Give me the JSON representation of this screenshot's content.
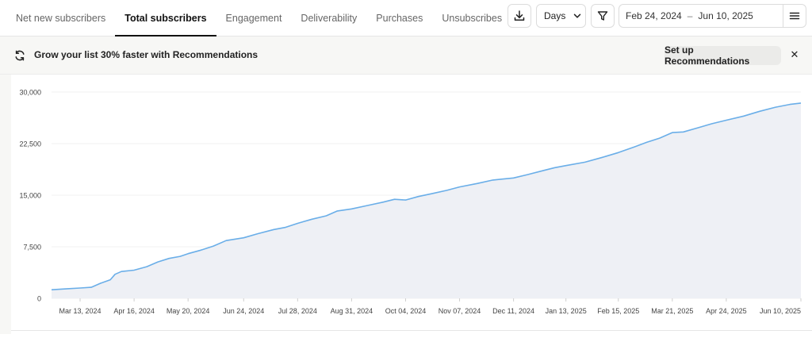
{
  "tabs": [
    {
      "label": "Net new subscribers",
      "active": false
    },
    {
      "label": "Total subscribers",
      "active": true
    },
    {
      "label": "Engagement",
      "active": false
    },
    {
      "label": "Deliverability",
      "active": false
    },
    {
      "label": "Purchases",
      "active": false
    },
    {
      "label": "Unsubscribes",
      "active": false
    }
  ],
  "toolbar": {
    "download_icon": "download-icon",
    "granularity": "Days",
    "filter_icon": "filter-icon",
    "date_start": "Feb 24, 2024",
    "date_sep": "–",
    "date_end": "Jun 10, 2025",
    "menu_icon": "menu-icon"
  },
  "banner": {
    "icon": "refresh-icon",
    "text": "Grow your list 30% faster with Recommendations",
    "button": "Set up Recommendations",
    "close": "✕"
  },
  "colors": {
    "line": "#6aaee8",
    "fill": "#eef0f5",
    "grid": "#f0f0f0"
  },
  "chart_data": {
    "type": "area",
    "title": "",
    "xlabel": "",
    "ylabel": "",
    "ylim": [
      0,
      30000
    ],
    "yticks": [
      {
        "value": 30000,
        "label": "30,000"
      },
      {
        "value": 22500,
        "label": "22,500"
      },
      {
        "value": 15000,
        "label": "15,000"
      },
      {
        "value": 7500,
        "label": "7,500"
      },
      {
        "value": 0,
        "label": "0"
      }
    ],
    "xlim": [
      "2024-02-24",
      "2025-06-10"
    ],
    "xticks": [
      {
        "date": "2024-03-13",
        "label": "Mar 13, 2024"
      },
      {
        "date": "2024-04-16",
        "label": "Apr 16, 2024"
      },
      {
        "date": "2024-05-20",
        "label": "May 20, 2024"
      },
      {
        "date": "2024-06-24",
        "label": "Jun 24, 2024"
      },
      {
        "date": "2024-07-28",
        "label": "Jul 28, 2024"
      },
      {
        "date": "2024-08-31",
        "label": "Aug 31, 2024"
      },
      {
        "date": "2024-10-04",
        "label": "Oct 04, 2024"
      },
      {
        "date": "2024-11-07",
        "label": "Nov 07, 2024"
      },
      {
        "date": "2024-12-11",
        "label": "Dec 11, 2024"
      },
      {
        "date": "2025-01-13",
        "label": "Jan 13, 2025"
      },
      {
        "date": "2025-02-15",
        "label": "Feb 15, 2025"
      },
      {
        "date": "2025-03-21",
        "label": "Mar 21, 2025"
      },
      {
        "date": "2025-04-24",
        "label": "Apr 24, 2025"
      },
      {
        "date": "2025-06-10",
        "label": "Jun 10, 2025"
      }
    ],
    "grid": true,
    "series": [
      {
        "points": [
          [
            "2024-02-24",
            1250
          ],
          [
            "2024-03-05",
            1400
          ],
          [
            "2024-03-13",
            1500
          ],
          [
            "2024-03-20",
            1600
          ],
          [
            "2024-03-26",
            2200
          ],
          [
            "2024-04-01",
            2700
          ],
          [
            "2024-04-04",
            3500
          ],
          [
            "2024-04-08",
            3900
          ],
          [
            "2024-04-16",
            4100
          ],
          [
            "2024-04-24",
            4600
          ],
          [
            "2024-05-01",
            5300
          ],
          [
            "2024-05-08",
            5800
          ],
          [
            "2024-05-15",
            6100
          ],
          [
            "2024-05-20",
            6500
          ],
          [
            "2024-05-28",
            7000
          ],
          [
            "2024-06-05",
            7600
          ],
          [
            "2024-06-13",
            8400
          ],
          [
            "2024-06-24",
            8800
          ],
          [
            "2024-07-03",
            9400
          ],
          [
            "2024-07-13",
            10000
          ],
          [
            "2024-07-20",
            10300
          ],
          [
            "2024-07-28",
            10900
          ],
          [
            "2024-08-06",
            11500
          ],
          [
            "2024-08-15",
            12000
          ],
          [
            "2024-08-22",
            12700
          ],
          [
            "2024-08-31",
            13000
          ],
          [
            "2024-09-10",
            13500
          ],
          [
            "2024-09-20",
            14000
          ],
          [
            "2024-09-27",
            14400
          ],
          [
            "2024-10-04",
            14300
          ],
          [
            "2024-10-12",
            14800
          ],
          [
            "2024-10-20",
            15200
          ],
          [
            "2024-10-30",
            15700
          ],
          [
            "2024-11-07",
            16200
          ],
          [
            "2024-11-18",
            16700
          ],
          [
            "2024-11-28",
            17200
          ],
          [
            "2024-12-11",
            17500
          ],
          [
            "2024-12-20",
            18000
          ],
          [
            "2024-12-30",
            18600
          ],
          [
            "2025-01-06",
            19000
          ],
          [
            "2025-01-13",
            19300
          ],
          [
            "2025-01-25",
            19800
          ],
          [
            "2025-02-05",
            20500
          ],
          [
            "2025-02-15",
            21200
          ],
          [
            "2025-02-25",
            22000
          ],
          [
            "2025-03-05",
            22700
          ],
          [
            "2025-03-13",
            23300
          ],
          [
            "2025-03-21",
            24100
          ],
          [
            "2025-03-28",
            24200
          ],
          [
            "2025-04-06",
            24800
          ],
          [
            "2025-04-15",
            25400
          ],
          [
            "2025-04-24",
            25900
          ],
          [
            "2025-05-05",
            26500
          ],
          [
            "2025-05-15",
            27200
          ],
          [
            "2025-05-25",
            27800
          ],
          [
            "2025-06-03",
            28200
          ],
          [
            "2025-06-10",
            28400
          ]
        ]
      }
    ]
  }
}
